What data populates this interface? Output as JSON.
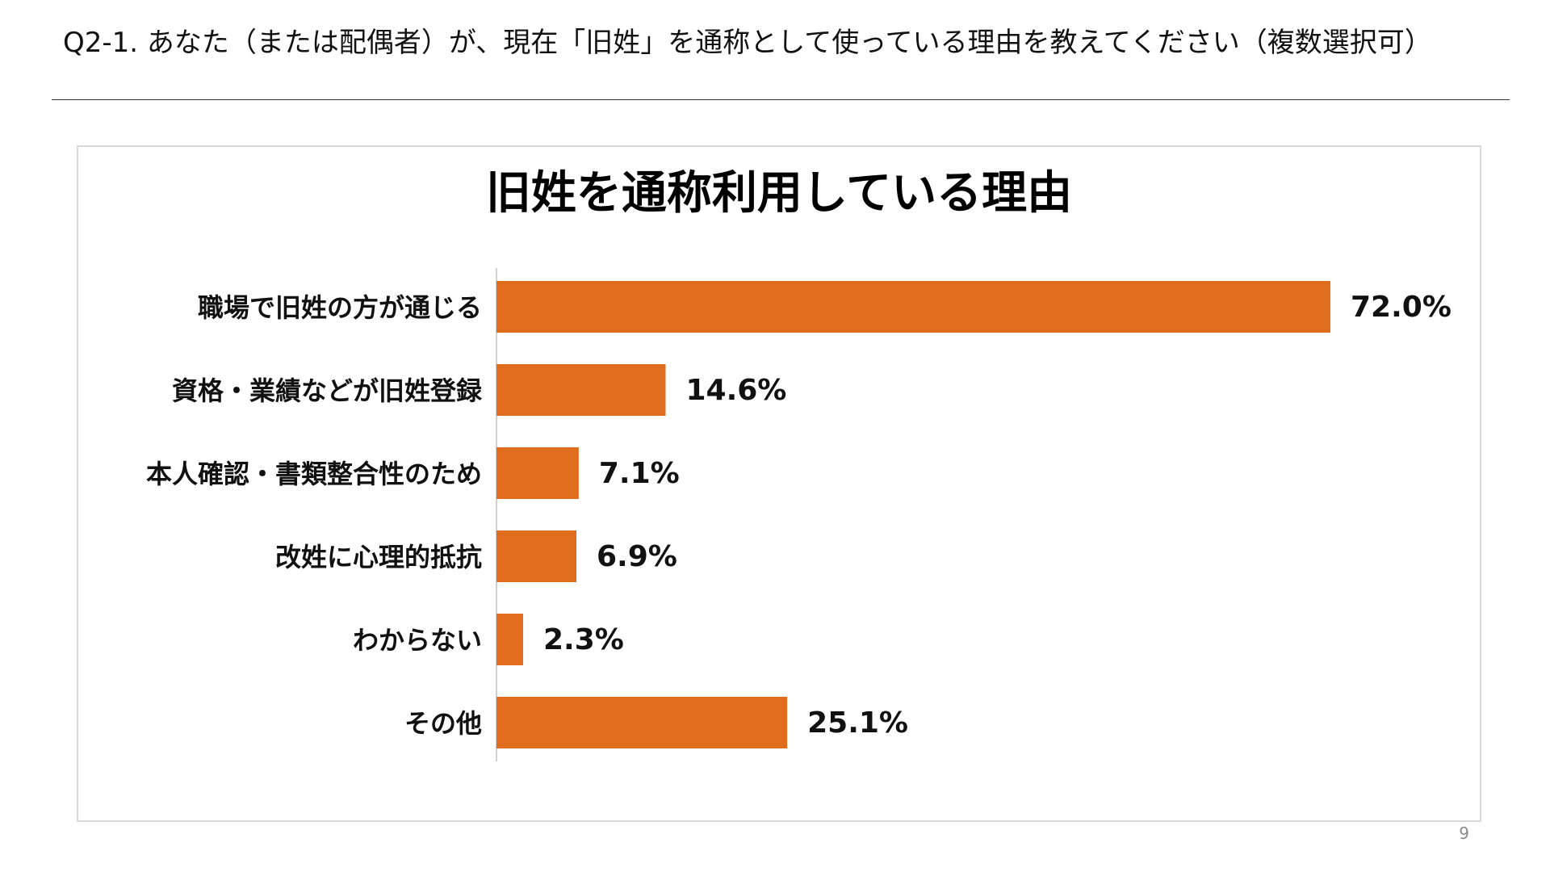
{
  "slide": {
    "question": "Q2-1. あなた（または配偶者）が、現在「旧姓」を通称として使っている理由を教えてください（複数選択可）",
    "page_number": "9"
  },
  "chart_data": {
    "type": "bar",
    "orientation": "horizontal",
    "title": "旧姓を通称利用している理由",
    "categories": [
      "職場で旧姓の方が通じる",
      "資格・業績などが旧姓登録",
      "本人確認・書類整合性のため",
      "改姓に心理的抵抗",
      "わからない",
      "その他"
    ],
    "values": [
      72.0,
      14.6,
      7.1,
      6.9,
      2.3,
      25.1
    ],
    "value_labels": [
      "72.0%",
      "14.6%",
      "7.1%",
      "6.9%",
      "2.3%",
      "25.1%"
    ],
    "xlabel": "",
    "ylabel": "",
    "xlim": [
      0,
      72.0
    ],
    "grid": false,
    "legend": "none",
    "bar_color": "#e06c1e"
  }
}
